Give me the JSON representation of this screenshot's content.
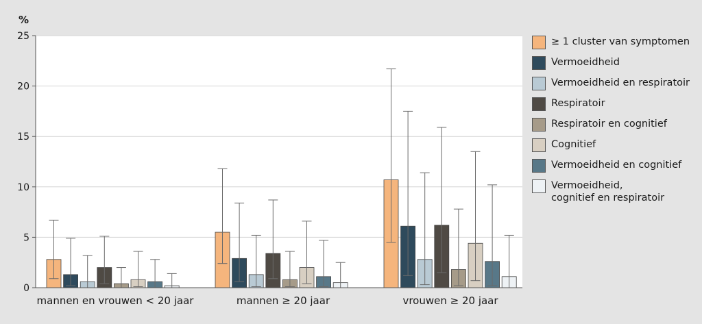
{
  "chart_data": {
    "type": "bar",
    "ylabel": "%",
    "ylim": [
      0,
      25
    ],
    "yticks": [
      "0",
      "5",
      "10",
      "15",
      "20",
      "25"
    ],
    "grid": true,
    "legend_position": "right",
    "categories": [
      "mannen en vrouwen < 20 jaar",
      "mannen ≥ 20 jaar",
      "vrouwen ≥ 20 jaar"
    ],
    "series": [
      {
        "name": "≥ 1 cluster van symptomen",
        "color": "#f5b57d",
        "values": [
          2.8,
          5.5,
          10.7
        ],
        "ci_low": [
          0.9,
          2.4,
          4.5
        ],
        "ci_high": [
          6.7,
          11.8,
          21.7
        ]
      },
      {
        "name": "Vermoeidheid",
        "color": "#2e4a5c",
        "values": [
          1.3,
          2.9,
          6.1
        ],
        "ci_low": [
          0.2,
          0.6,
          1.2
        ],
        "ci_high": [
          4.9,
          8.4,
          17.5
        ]
      },
      {
        "name": "Vermoeidheid en respiratoir",
        "color": "#b9cad4",
        "values": [
          0.6,
          1.3,
          2.8
        ],
        "ci_low": [
          0.0,
          0.1,
          0.3
        ],
        "ci_high": [
          3.2,
          5.2,
          11.4
        ]
      },
      {
        "name": "Respiratoir",
        "color": "#4f4a44",
        "values": [
          2.0,
          3.4,
          6.2
        ],
        "ci_low": [
          0.4,
          0.9,
          1.5
        ],
        "ci_high": [
          5.1,
          8.7,
          15.9
        ]
      },
      {
        "name": "Respiratoir en cognitief",
        "color": "#a69b89",
        "values": [
          0.4,
          0.8,
          1.8
        ],
        "ci_low": [
          0.0,
          0.1,
          0.2
        ],
        "ci_high": [
          2.0,
          3.6,
          7.8
        ]
      },
      {
        "name": "Cognitief",
        "color": "#d8cfc2",
        "values": [
          0.8,
          2.0,
          4.4
        ],
        "ci_low": [
          0.1,
          0.4,
          0.7
        ],
        "ci_high": [
          3.6,
          6.6,
          13.5
        ]
      },
      {
        "name": "Vermoeidheid en cognitief",
        "color": "#587888",
        "values": [
          0.6,
          1.1,
          2.6
        ],
        "ci_low": [
          0.0,
          0.1,
          0.2
        ],
        "ci_high": [
          2.8,
          4.7,
          10.2
        ]
      },
      {
        "name": "Vermoeidheid,\ncognitief en respiratoir",
        "color": "#eef2f5",
        "values": [
          0.2,
          0.5,
          1.1
        ],
        "ci_low": [
          0.0,
          0.0,
          0.0
        ],
        "ci_high": [
          1.4,
          2.5,
          5.2
        ]
      }
    ]
  }
}
